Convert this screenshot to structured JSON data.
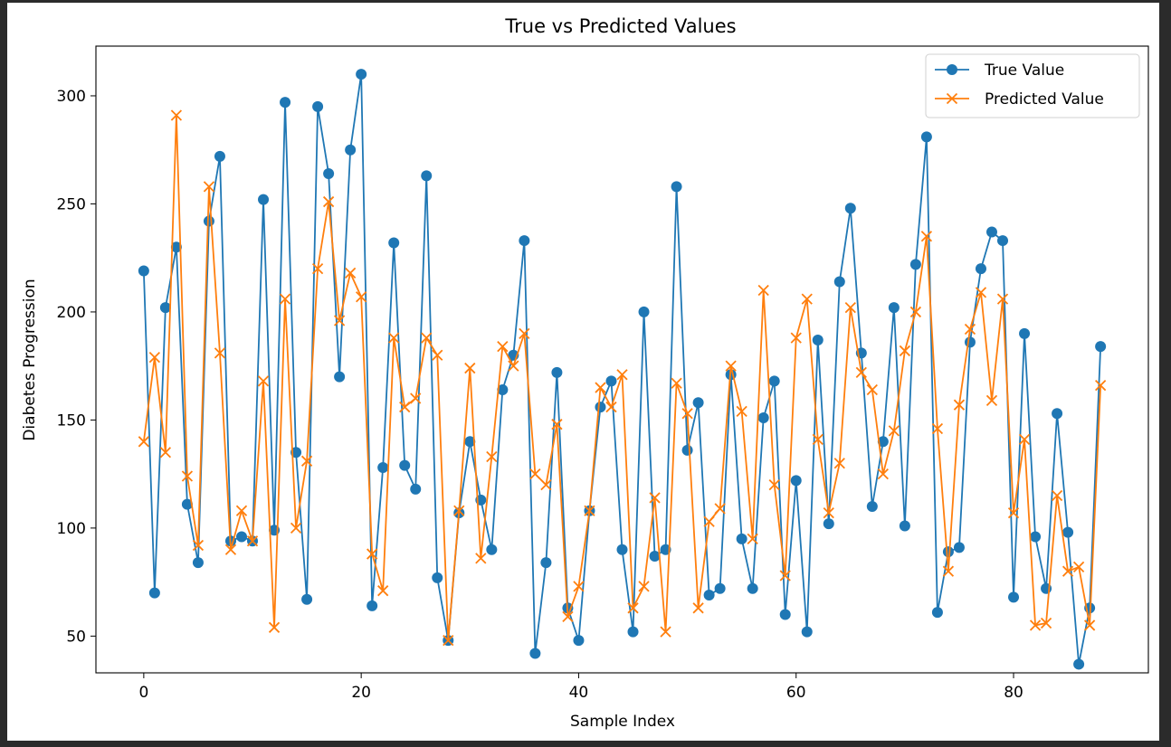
{
  "chart_data": {
    "type": "line",
    "title": "True vs Predicted Values",
    "xlabel": "Sample Index",
    "ylabel": "Diabetes Progression",
    "xlim": [
      -4.4,
      92.4
    ],
    "ylim": [
      33,
      323
    ],
    "xticks": [
      0,
      20,
      40,
      60,
      80
    ],
    "yticks": [
      50,
      100,
      150,
      200,
      250,
      300
    ],
    "grid": false,
    "legend_position": "upper right",
    "x": [
      0,
      1,
      2,
      3,
      4,
      5,
      6,
      7,
      8,
      9,
      10,
      11,
      12,
      13,
      14,
      15,
      16,
      17,
      18,
      19,
      20,
      21,
      22,
      23,
      24,
      25,
      26,
      27,
      28,
      29,
      30,
      31,
      32,
      33,
      34,
      35,
      36,
      37,
      38,
      39,
      40,
      41,
      42,
      43,
      44,
      45,
      46,
      47,
      48,
      49,
      50,
      51,
      52,
      53,
      54,
      55,
      56,
      57,
      58,
      59,
      60,
      61,
      62,
      63,
      64,
      65,
      66,
      67,
      68,
      69,
      70,
      71,
      72,
      73,
      74,
      75,
      76,
      77,
      78,
      79,
      80,
      81,
      82,
      83,
      84,
      85,
      86,
      87,
      88
    ],
    "series": [
      {
        "name": "True Value",
        "color": "#1f77b4",
        "marker": "circle",
        "values": [
          219,
          70,
          202,
          230,
          111,
          84,
          242,
          272,
          94,
          96,
          94,
          252,
          99,
          297,
          135,
          67,
          295,
          264,
          170,
          275,
          310,
          64,
          128,
          232,
          129,
          118,
          263,
          77,
          48,
          107,
          140,
          113,
          90,
          164,
          180,
          233,
          42,
          84,
          172,
          63,
          48,
          108,
          156,
          168,
          90,
          52,
          200,
          87,
          90,
          258,
          136,
          158,
          69,
          72,
          171,
          95,
          72,
          151,
          168,
          60,
          122,
          52,
          187,
          102,
          214,
          248,
          181,
          110,
          140,
          202,
          101,
          222,
          281,
          61,
          89,
          91,
          186,
          220,
          237,
          233,
          68,
          190,
          96,
          72,
          153,
          98,
          37,
          63,
          184
        ]
      },
      {
        "name": "Predicted Value",
        "color": "#ff7f0e",
        "marker": "x",
        "values": [
          140,
          179,
          135,
          291,
          124,
          92,
          258,
          181,
          90,
          108,
          94,
          168,
          54,
          206,
          100,
          131,
          220,
          251,
          196,
          218,
          207,
          88,
          71,
          188,
          156,
          160,
          188,
          180,
          48,
          108,
          174,
          86,
          133,
          184,
          175,
          190,
          125,
          120,
          148,
          59,
          73,
          108,
          165,
          156,
          171,
          63,
          73,
          114,
          52,
          167,
          153,
          63,
          103,
          109,
          175,
          154,
          95,
          210,
          120,
          78,
          188,
          206,
          141,
          107,
          130,
          202,
          172,
          164,
          125,
          145,
          182,
          200,
          235,
          146,
          80,
          157,
          192,
          209,
          159,
          206,
          107,
          141,
          55,
          56,
          115,
          80,
          82,
          55,
          166
        ]
      }
    ]
  }
}
